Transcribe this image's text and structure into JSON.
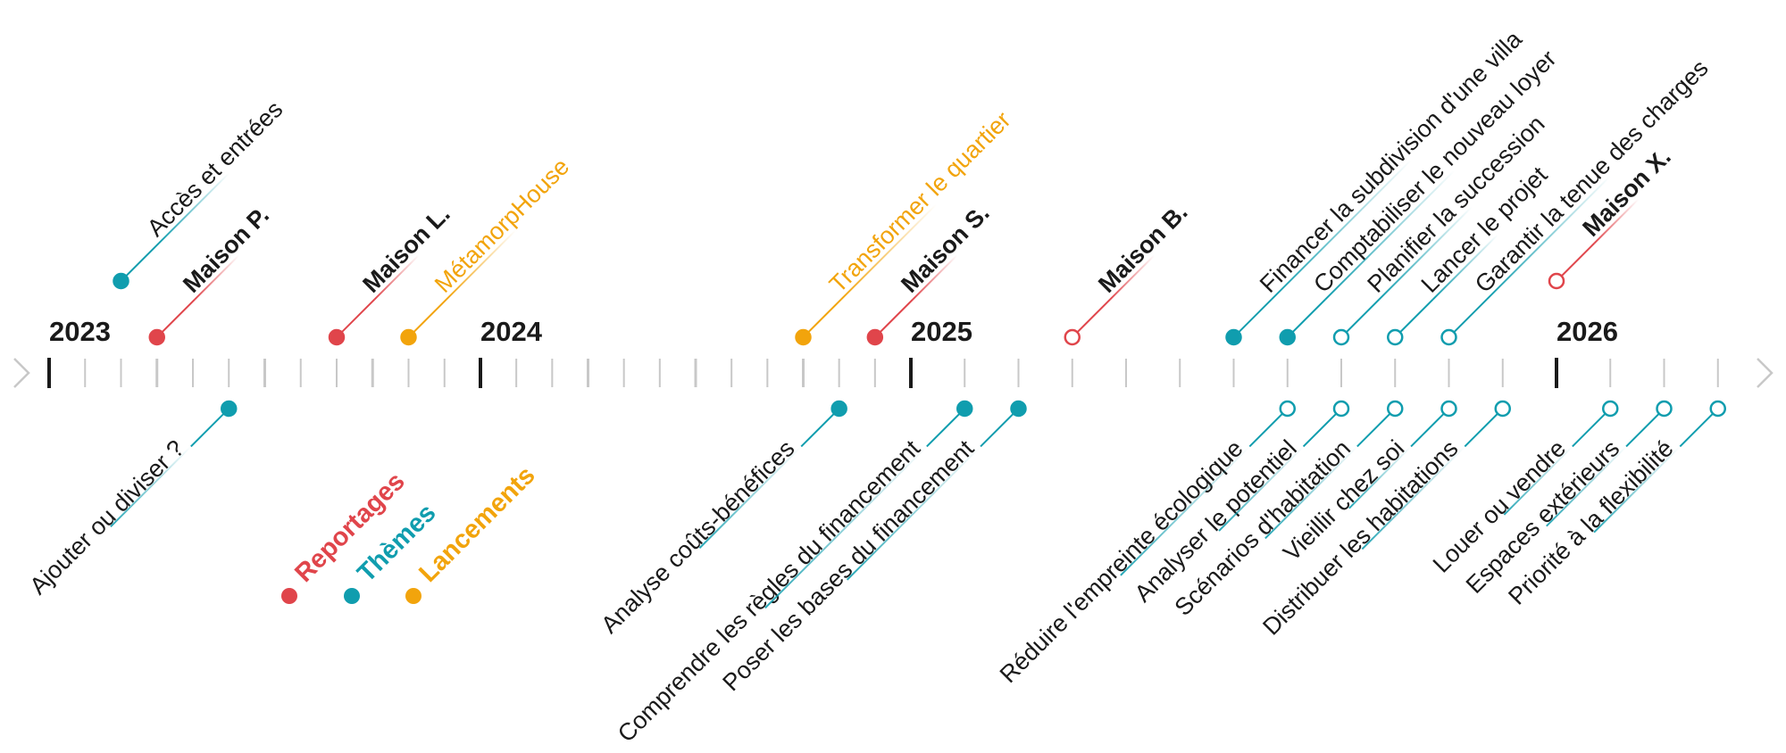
{
  "colors": {
    "reportage": "#E0454B",
    "theme": "#109DAE",
    "lancement": "#F2A40C",
    "year_tick": "#1a1a1a",
    "minor_tick": "#c8c8c8",
    "text": "#1a1a1a"
  },
  "timeline": {
    "start_year": 2023,
    "end_year": 2026,
    "years": [
      {
        "label": "2023",
        "value": 2023
      },
      {
        "label": "2024",
        "value": 2024
      },
      {
        "label": "2025",
        "value": 2025
      },
      {
        "label": "2026",
        "value": 2026
      }
    ],
    "start_arrow": "chevron-right-icon",
    "end_arrow": "chevron-right-icon"
  },
  "legend": [
    {
      "label": "Reportages",
      "category": "reportage"
    },
    {
      "label": "Thèmes",
      "category": "theme"
    },
    {
      "label": "Lancements",
      "category": "lancement"
    }
  ],
  "events": [
    {
      "label": "Accès et entrées",
      "date": "2023-03",
      "category": "theme",
      "side": "top",
      "level": 2,
      "filled": true
    },
    {
      "label": "Maison P.",
      "date": "2023-04",
      "category": "reportage",
      "side": "top",
      "level": 1,
      "filled": true
    },
    {
      "label": "Ajouter ou diviser ?",
      "date": "2023-06",
      "category": "theme",
      "side": "bottom",
      "level": 1,
      "filled": true
    },
    {
      "label": "Maison L.",
      "date": "2023-09",
      "category": "reportage",
      "side": "top",
      "level": 1,
      "filled": true
    },
    {
      "label": "MétamorpHouse",
      "date": "2023-11",
      "category": "lancement",
      "side": "top",
      "level": 1,
      "filled": true
    },
    {
      "label": "Transformer le quartier",
      "date": "2024-10",
      "category": "lancement",
      "side": "top",
      "level": 1,
      "filled": true
    },
    {
      "label": "Analyse coûts-bénéfices",
      "date": "2024-11",
      "category": "theme",
      "side": "bottom",
      "level": 1,
      "filled": true
    },
    {
      "label": "Maison S.",
      "date": "2024-12",
      "category": "reportage",
      "side": "top",
      "level": 1,
      "filled": true
    },
    {
      "label": "Comprendre les règles du financement",
      "date": "2025-02",
      "category": "theme",
      "side": "bottom",
      "level": 1,
      "filled": true
    },
    {
      "label": "Poser les bases du financement",
      "date": "2025-03",
      "category": "theme",
      "side": "bottom",
      "level": 1,
      "filled": true
    },
    {
      "label": "Maison B.",
      "date": "2025-04",
      "category": "reportage",
      "side": "top",
      "level": 1,
      "filled": false
    },
    {
      "label": "Financer la subdivision d'une villa",
      "date": "2025-07",
      "category": "theme",
      "side": "top",
      "level": 1,
      "filled": true
    },
    {
      "label": "Comptabiliser le nouveau loyer",
      "date": "2025-08",
      "category": "theme",
      "side": "top",
      "level": 1,
      "filled": true
    },
    {
      "label": "Réduire l'empreinte écologique",
      "date": "2025-08",
      "category": "theme",
      "side": "bottom",
      "level": 1,
      "filled": false
    },
    {
      "label": "Planifier la succession",
      "date": "2025-09",
      "category": "theme",
      "side": "top",
      "level": 1,
      "filled": false
    },
    {
      "label": "Analyser le potentiel",
      "date": "2025-09",
      "category": "theme",
      "side": "bottom",
      "level": 1,
      "filled": false
    },
    {
      "label": "Lancer le projet",
      "date": "2025-10",
      "category": "theme",
      "side": "top",
      "level": 1,
      "filled": false
    },
    {
      "label": "Scénarios d'habitation",
      "date": "2025-10",
      "category": "theme",
      "side": "bottom",
      "level": 1,
      "filled": false
    },
    {
      "label": "Garantir la tenue des charges",
      "date": "2025-11",
      "category": "theme",
      "side": "top",
      "level": 1,
      "filled": false
    },
    {
      "label": "Vieillir chez soi",
      "date": "2025-11",
      "category": "theme",
      "side": "bottom",
      "level": 1,
      "filled": false
    },
    {
      "label": "Distribuer les habitations",
      "date": "2025-12",
      "category": "theme",
      "side": "bottom",
      "level": 1,
      "filled": false
    },
    {
      "label": "Maison X.",
      "date": "2026-01",
      "category": "reportage",
      "side": "top",
      "level": 2,
      "filled": false
    },
    {
      "label": "Louer ou vendre",
      "date": "2026-02",
      "category": "theme",
      "side": "bottom",
      "level": 1,
      "filled": false
    },
    {
      "label": "Espaces extérieurs",
      "date": "2026-03",
      "category": "theme",
      "side": "bottom",
      "level": 1,
      "filled": false
    },
    {
      "label": "Priorité à la flexibilité",
      "date": "2026-04",
      "category": "theme",
      "side": "bottom",
      "level": 1,
      "filled": false
    }
  ]
}
